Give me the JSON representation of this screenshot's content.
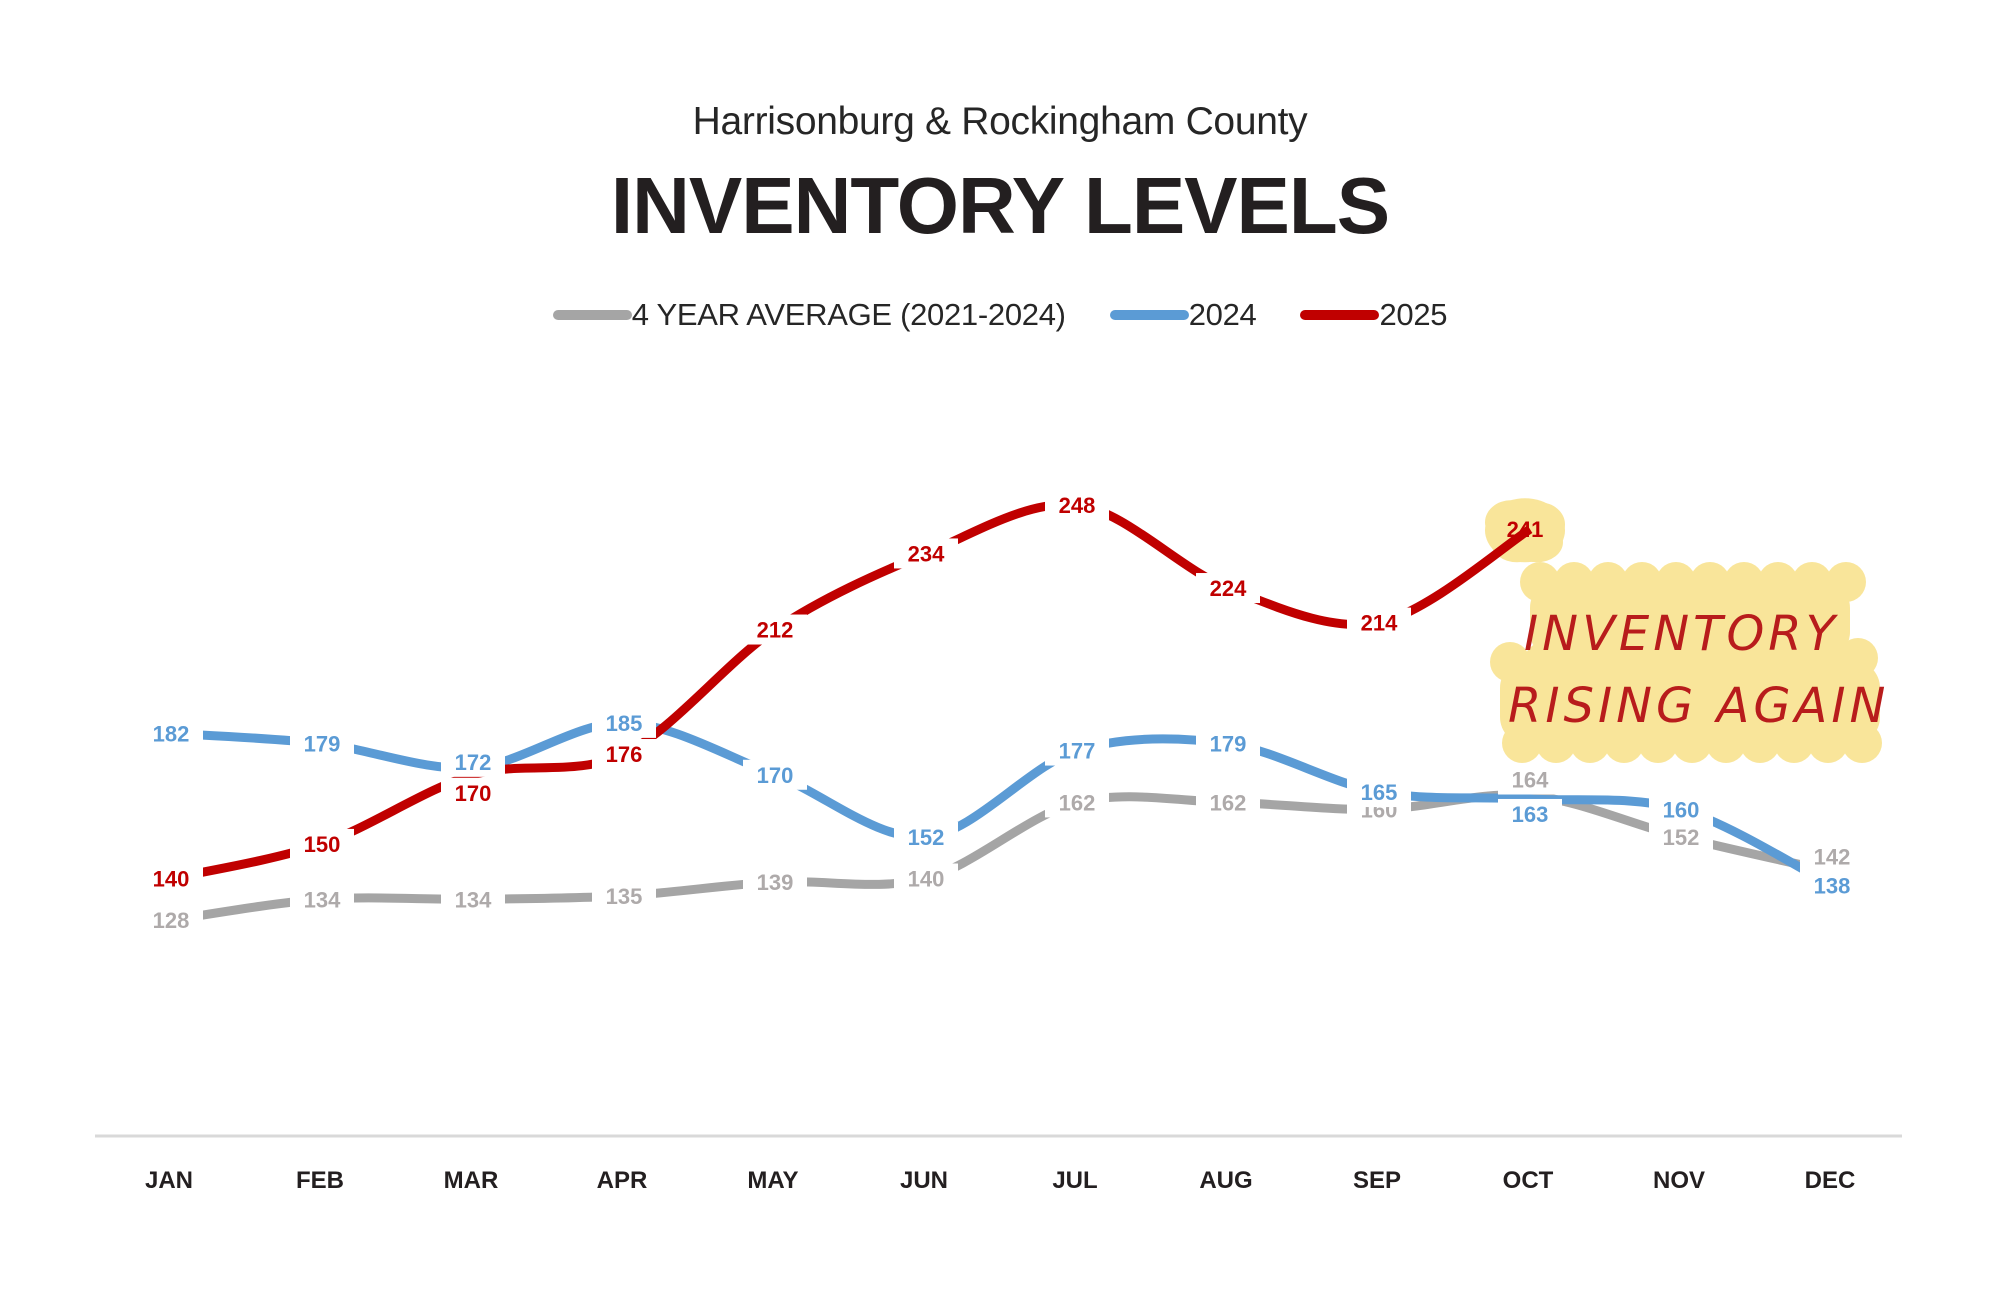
{
  "header": {
    "subtitle": "Harrisonburg & Rockingham County",
    "title": "INVENTORY LEVELS"
  },
  "legend": {
    "items": [
      {
        "label": "4 YEAR AVERAGE (2021-2024)",
        "color": "#A5A5A5"
      },
      {
        "label": "2024",
        "color": "#5B9BD5"
      },
      {
        "label": "2025",
        "color": "#C00000"
      }
    ]
  },
  "annotation": {
    "line1": "INVENTORY",
    "line2": "RISING AGAIN",
    "highlight_color": "#F9E59A",
    "text_color": "#B81C1C",
    "highlighted_point": {
      "series": "2025",
      "month": "OCT",
      "value": 241
    }
  },
  "chart_data": {
    "type": "line",
    "title": "INVENTORY LEVELS",
    "subtitle": "Harrisonburg & Rockingham County",
    "xlabel": "",
    "ylabel": "",
    "categories": [
      "JAN",
      "FEB",
      "MAR",
      "APR",
      "MAY",
      "JUN",
      "JUL",
      "AUG",
      "SEP",
      "OCT",
      "NOV",
      "DEC"
    ],
    "series": [
      {
        "name": "4 YEAR AVERAGE (2021-2024)",
        "color": "#A5A5A5",
        "label_color": "#AEAAAA",
        "values": [
          128,
          134,
          134,
          135,
          139,
          140,
          162,
          162,
          160,
          164,
          152,
          142
        ]
      },
      {
        "name": "2024",
        "color": "#5B9BD5",
        "label_color": "#5B9BD5",
        "values": [
          182,
          179,
          172,
          185,
          170,
          152,
          177,
          179,
          165,
          163,
          160,
          138
        ]
      },
      {
        "name": "2025",
        "color": "#C00000",
        "label_color": "#C00000",
        "values": [
          140,
          150,
          170,
          176,
          212,
          234,
          248,
          224,
          214,
          241,
          null,
          null
        ]
      }
    ],
    "smooth": true,
    "data_labels": true,
    "grid": false,
    "y_axis_visible": false,
    "legend_position": "top",
    "ylim": [
      128,
      248
    ],
    "annotations": [
      "INVENTORY RISING AGAIN"
    ]
  }
}
